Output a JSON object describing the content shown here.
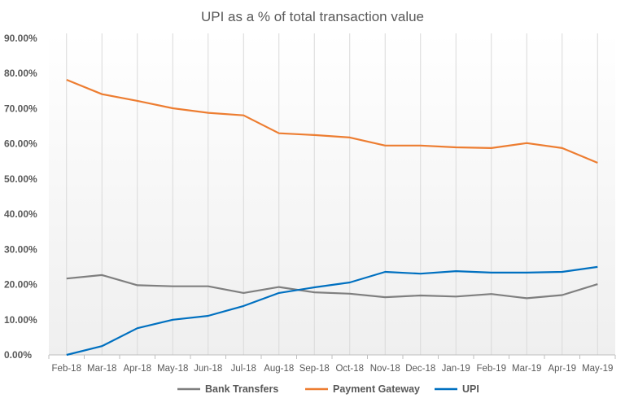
{
  "chart_data": {
    "type": "line",
    "title": "UPI as a % of total transaction value",
    "xlabel": "",
    "ylabel": "",
    "categories": [
      "Feb-18",
      "Mar-18",
      "Apr-18",
      "May-18",
      "Jun-18",
      "Jul-18",
      "Aug-18",
      "Sep-18",
      "Oct-18",
      "Nov-18",
      "Dec-18",
      "Jan-19",
      "Feb-19",
      "Mar-19",
      "Apr-19",
      "May-19"
    ],
    "ylim": [
      0,
      90
    ],
    "yticks": [
      "0.00%",
      "10.00%",
      "20.00%",
      "30.00%",
      "40.00%",
      "50.00%",
      "60.00%",
      "70.00%",
      "80.00%",
      "90.00%"
    ],
    "grid": "vertical",
    "legend_position": "bottom",
    "series": [
      {
        "name": "Bank Transfers",
        "color": "#7f7f7f",
        "values": [
          21.7,
          22.7,
          19.8,
          19.5,
          19.5,
          17.6,
          19.3,
          17.8,
          17.4,
          16.4,
          16.9,
          16.6,
          17.3,
          16.1,
          17.0,
          20.1
        ]
      },
      {
        "name": "Payment Gateway",
        "color": "#ed7d31",
        "values": [
          78.2,
          74.1,
          72.2,
          70.1,
          68.8,
          68.1,
          63.0,
          62.5,
          61.8,
          59.5,
          59.5,
          59.0,
          58.8,
          60.2,
          58.8,
          54.6
        ]
      },
      {
        "name": "UPI",
        "color": "#0070c0",
        "values": [
          0.0,
          2.5,
          7.6,
          10.0,
          11.1,
          13.9,
          17.6,
          19.2,
          20.6,
          23.6,
          23.1,
          23.8,
          23.4,
          23.4,
          23.6,
          25.0
        ]
      }
    ]
  }
}
